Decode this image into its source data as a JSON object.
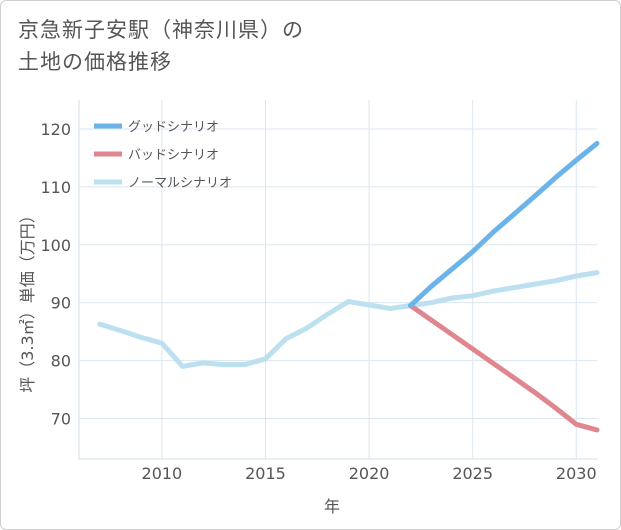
{
  "title_lines": [
    "京急新子安駅（神奈川県）の",
    "土地の価格推移"
  ],
  "chart_data": {
    "type": "line",
    "xlabel": "年",
    "ylabel": "坪（3.3㎡）単価（万円）",
    "xlim": [
      2006,
      2031
    ],
    "ylim": [
      63,
      125
    ],
    "xticks": [
      2010,
      2015,
      2020,
      2025,
      2030
    ],
    "yticks": [
      70,
      80,
      90,
      100,
      110,
      120
    ],
    "grid": true,
    "legend_position": "top-left",
    "series": [
      {
        "name": "グッドシナリオ",
        "color": "#6ab4ea",
        "x": [
          2022,
          2023,
          2024,
          2025,
          2026,
          2027,
          2028,
          2029,
          2030,
          2031
        ],
        "y": [
          89.5,
          92.8,
          95.8,
          98.8,
          102.2,
          105.3,
          108.4,
          111.6,
          114.6,
          117.5
        ]
      },
      {
        "name": "バッドシナリオ",
        "color": "#e0868f",
        "x": [
          2022,
          2023,
          2024,
          2025,
          2026,
          2027,
          2028,
          2029,
          2030,
          2031
        ],
        "y": [
          89.5,
          87.0,
          84.5,
          82.0,
          79.5,
          77.0,
          74.5,
          71.8,
          69.0,
          68.0
        ]
      },
      {
        "name": "ノーマルシナリオ",
        "color": "#bde0f0",
        "x": [
          2007,
          2008,
          2009,
          2010,
          2011,
          2012,
          2013,
          2014,
          2015,
          2016,
          2017,
          2018,
          2019,
          2020,
          2021,
          2022,
          2023,
          2024,
          2025,
          2026,
          2027,
          2028,
          2029,
          2030,
          2031
        ],
        "y": [
          86.3,
          85.2,
          84.0,
          83.0,
          79.0,
          79.6,
          79.3,
          79.3,
          80.3,
          83.8,
          85.6,
          88.0,
          90.2,
          89.6,
          89.0,
          89.5,
          90.0,
          90.8,
          91.2,
          92.0,
          92.6,
          93.2,
          93.8,
          94.6,
          95.2
        ]
      }
    ]
  }
}
